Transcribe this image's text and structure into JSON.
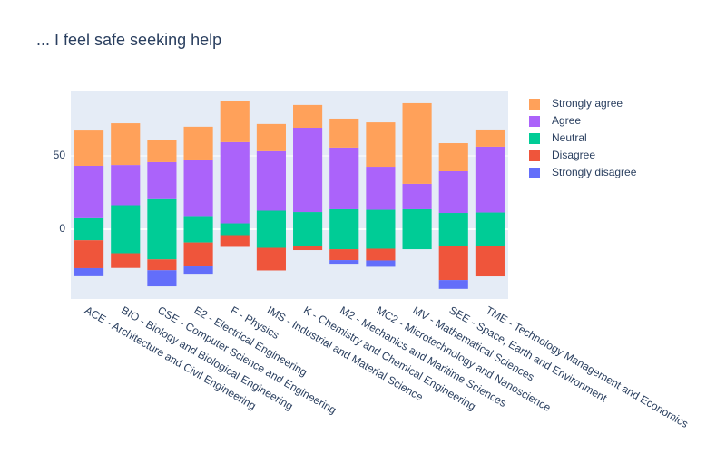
{
  "chart_data": {
    "type": "bar",
    "title": "... I feel safe seeking help",
    "categories": [
      "ACE - Architecture and Civil Engineering",
      "BIO - Biology and Biological Engineering",
      "CSE - Computer Science and Engineering",
      "E2 - Electrical Engineering",
      "F - Physics",
      "IMS - Industrial and Material Science",
      "K - Chemistry and Chemical Engineering",
      "M2 - Mechanics and Maritime Sciences",
      "MC2 - Microtechnology and Nanoscience",
      "MV - Mathematical Sciences",
      "SEE - Space, Earth and Environment",
      "TME - Technology Management and Economics"
    ],
    "series": [
      {
        "name": "Strongly disagree",
        "color": "#636EFA",
        "values": [
          5.5,
          0,
          11,
          5,
          0,
          0,
          0,
          2.5,
          4.3,
          0,
          6,
          0
        ]
      },
      {
        "name": "Disagree",
        "color": "#EF553B",
        "values": [
          19,
          10,
          7.4,
          16.3,
          8,
          15.4,
          2.5,
          7.4,
          8,
          0,
          23.5,
          20.7
        ]
      },
      {
        "name": "Neutral",
        "color": "#00CC96",
        "values": [
          15,
          32.7,
          41,
          18,
          8,
          25.3,
          23.4,
          27.2,
          26.5,
          27.2,
          22.2,
          22.8
        ]
      },
      {
        "name": "Agree",
        "color": "#AB63FA",
        "values": [
          35.7,
          27.4,
          25.2,
          37.9,
          55.3,
          40.5,
          57.4,
          42,
          29.3,
          17.3,
          28.4,
          44.8
        ]
      },
      {
        "name": "Strongly agree",
        "color": "#FFA15A",
        "values": [
          24,
          28.4,
          14.8,
          22.9,
          27.7,
          18.5,
          15.5,
          19.7,
          30.2,
          54.9,
          19.1,
          11.7
        ]
      }
    ],
    "ylim": [
      -47.5,
      94.4
    ],
    "yticks": [
      0,
      50
    ],
    "grid": true
  }
}
